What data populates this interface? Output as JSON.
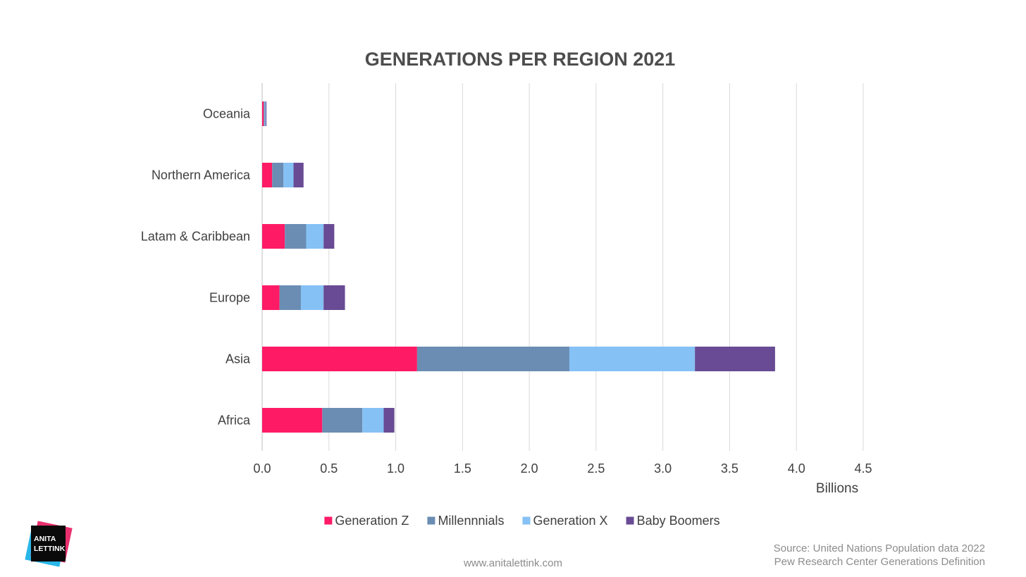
{
  "chart_data": {
    "type": "bar",
    "orientation": "horizontal",
    "stacked": true,
    "title": "GENERATIONS PER REGION 2021",
    "categories": [
      "Africa",
      "Asia",
      "Europe",
      "Latam & Caribbean",
      "Northern America",
      "Oceania"
    ],
    "series": [
      {
        "name": "Generation Z",
        "color": "#ff1a66",
        "values": [
          0.45,
          1.16,
          0.13,
          0.17,
          0.075,
          0.012
        ]
      },
      {
        "name": "Millennnials",
        "color": "#6b8db3",
        "values": [
          0.3,
          1.14,
          0.16,
          0.16,
          0.085,
          0.008
        ]
      },
      {
        "name": "Generation X",
        "color": "#85c1f5",
        "values": [
          0.16,
          0.94,
          0.17,
          0.13,
          0.075,
          0.006
        ]
      },
      {
        "name": "Baby Boomers",
        "color": "#684b94",
        "values": [
          0.08,
          0.6,
          0.16,
          0.08,
          0.075,
          0.006
        ]
      }
    ],
    "xlabel": "Billions",
    "ylabel": "",
    "xlim": [
      0,
      4.5
    ],
    "xticks": [
      "0.0",
      "0.5",
      "1.0",
      "1.5",
      "2.0",
      "2.5",
      "3.0",
      "3.5",
      "4.0",
      "4.5"
    ],
    "grid": "vertical",
    "legend_position": "bottom"
  },
  "footer": {
    "website": "www.anitalettink.com",
    "source_line1": "Source: United Nations Population data 2022",
    "source_line2": "Pew Research Center Generations Definition"
  },
  "logo": {
    "line1": "ANITA",
    "line2": "LETTINK"
  }
}
